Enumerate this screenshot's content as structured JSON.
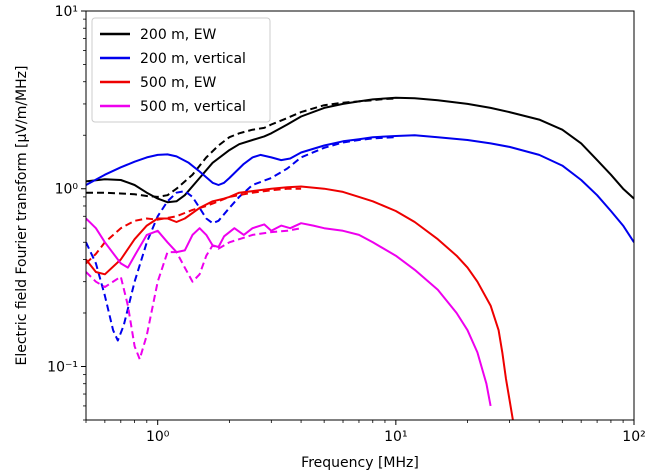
{
  "chart_data": {
    "type": "line",
    "xlabel": "Frequency [MHz]",
    "ylabel": "Electric field Fourier transform [μV/m/MHz]",
    "xscale": "log",
    "yscale": "log",
    "xlim": [
      0.5,
      100
    ],
    "ylim": [
      0.05,
      10
    ],
    "x_ticks": [
      {
        "value": 1,
        "label": "10⁰"
      },
      {
        "value": 10,
        "label": "10¹"
      },
      {
        "value": 100,
        "label": "10²"
      }
    ],
    "y_ticks": [
      {
        "value": 0.1,
        "label": "10⁻¹"
      },
      {
        "value": 1,
        "label": "10⁰"
      },
      {
        "value": 10,
        "label": "10¹"
      }
    ],
    "grid": false,
    "legend": {
      "placement": "upper-left",
      "entries": [
        {
          "name": "200 m, EW",
          "color": "#000000"
        },
        {
          "name": "200 m, vertical",
          "color": "#0000ee"
        },
        {
          "name": "500 m, EW",
          "color": "#ee0000"
        },
        {
          "name": "500 m, vertical",
          "color": "#ee00ee"
        }
      ]
    },
    "series": [
      {
        "name": "200 m, EW",
        "style": "solid",
        "color": "#000000",
        "points": [
          [
            0.5,
            1.1
          ],
          [
            0.6,
            1.13
          ],
          [
            0.7,
            1.12
          ],
          [
            0.8,
            1.05
          ],
          [
            0.9,
            0.95
          ],
          [
            1.0,
            0.88
          ],
          [
            1.1,
            0.84
          ],
          [
            1.2,
            0.85
          ],
          [
            1.3,
            0.92
          ],
          [
            1.5,
            1.15
          ],
          [
            1.7,
            1.4
          ],
          [
            2.0,
            1.65
          ],
          [
            2.2,
            1.78
          ],
          [
            2.5,
            1.88
          ],
          [
            2.8,
            1.97
          ],
          [
            3.0,
            2.05
          ],
          [
            3.5,
            2.3
          ],
          [
            4.0,
            2.55
          ],
          [
            5.0,
            2.85
          ],
          [
            6.0,
            3.0
          ],
          [
            7.0,
            3.1
          ],
          [
            8.0,
            3.18
          ],
          [
            9.0,
            3.22
          ],
          [
            10.0,
            3.25
          ],
          [
            12.0,
            3.23
          ],
          [
            15.0,
            3.15
          ],
          [
            20.0,
            3.0
          ],
          [
            25.0,
            2.85
          ],
          [
            30.0,
            2.7
          ],
          [
            40.0,
            2.45
          ],
          [
            50.0,
            2.15
          ],
          [
            60.0,
            1.8
          ],
          [
            70.0,
            1.45
          ],
          [
            80.0,
            1.2
          ],
          [
            90.0,
            1.0
          ],
          [
            100.0,
            0.88
          ]
        ]
      },
      {
        "name": "200 m, EW (dashed)",
        "style": "dashed",
        "color": "#000000",
        "points": [
          [
            0.5,
            0.95
          ],
          [
            0.6,
            0.95
          ],
          [
            0.7,
            0.94
          ],
          [
            0.8,
            0.93
          ],
          [
            0.9,
            0.91
          ],
          [
            1.0,
            0.9
          ],
          [
            1.1,
            0.92
          ],
          [
            1.2,
            1.0
          ],
          [
            1.4,
            1.2
          ],
          [
            1.6,
            1.5
          ],
          [
            1.8,
            1.75
          ],
          [
            2.0,
            1.95
          ],
          [
            2.2,
            2.05
          ],
          [
            2.5,
            2.15
          ],
          [
            2.8,
            2.2
          ],
          [
            3.0,
            2.3
          ],
          [
            3.5,
            2.5
          ],
          [
            4.0,
            2.7
          ],
          [
            5.0,
            2.95
          ],
          [
            6.0,
            3.05
          ],
          [
            7.0,
            3.1
          ],
          [
            8.0,
            3.15
          ],
          [
            9.0,
            3.2
          ],
          [
            10.0,
            3.22
          ]
        ]
      },
      {
        "name": "200 m, vertical",
        "style": "solid",
        "color": "#0000ee",
        "points": [
          [
            0.5,
            1.05
          ],
          [
            0.6,
            1.2
          ],
          [
            0.7,
            1.32
          ],
          [
            0.8,
            1.42
          ],
          [
            0.9,
            1.5
          ],
          [
            1.0,
            1.55
          ],
          [
            1.1,
            1.56
          ],
          [
            1.2,
            1.52
          ],
          [
            1.35,
            1.4
          ],
          [
            1.5,
            1.25
          ],
          [
            1.7,
            1.08
          ],
          [
            1.8,
            1.05
          ],
          [
            1.9,
            1.08
          ],
          [
            2.0,
            1.15
          ],
          [
            2.3,
            1.38
          ],
          [
            2.5,
            1.5
          ],
          [
            2.7,
            1.55
          ],
          [
            3.0,
            1.5
          ],
          [
            3.3,
            1.45
          ],
          [
            3.6,
            1.48
          ],
          [
            4.0,
            1.6
          ],
          [
            5.0,
            1.75
          ],
          [
            6.0,
            1.85
          ],
          [
            7.0,
            1.9
          ],
          [
            8.0,
            1.95
          ],
          [
            10.0,
            1.98
          ],
          [
            12.0,
            2.0
          ],
          [
            15.0,
            1.95
          ],
          [
            20.0,
            1.88
          ],
          [
            25.0,
            1.8
          ],
          [
            30.0,
            1.72
          ],
          [
            40.0,
            1.55
          ],
          [
            50.0,
            1.35
          ],
          [
            60.0,
            1.12
          ],
          [
            70.0,
            0.92
          ],
          [
            80.0,
            0.75
          ],
          [
            90.0,
            0.62
          ],
          [
            100.0,
            0.5
          ]
        ]
      },
      {
        "name": "200 m, vertical (dashed)",
        "style": "dashed",
        "color": "#0000ee",
        "points": [
          [
            0.5,
            0.5
          ],
          [
            0.55,
            0.38
          ],
          [
            0.6,
            0.25
          ],
          [
            0.65,
            0.16
          ],
          [
            0.68,
            0.14
          ],
          [
            0.72,
            0.17
          ],
          [
            0.8,
            0.3
          ],
          [
            0.9,
            0.5
          ],
          [
            1.0,
            0.7
          ],
          [
            1.1,
            0.85
          ],
          [
            1.2,
            0.95
          ],
          [
            1.3,
            0.97
          ],
          [
            1.4,
            0.9
          ],
          [
            1.5,
            0.78
          ],
          [
            1.6,
            0.68
          ],
          [
            1.7,
            0.64
          ],
          [
            1.8,
            0.66
          ],
          [
            2.0,
            0.78
          ],
          [
            2.2,
            0.9
          ],
          [
            2.5,
            1.05
          ],
          [
            3.0,
            1.15
          ],
          [
            3.5,
            1.3
          ],
          [
            4.0,
            1.5
          ],
          [
            5.0,
            1.7
          ],
          [
            6.0,
            1.82
          ],
          [
            7.0,
            1.88
          ],
          [
            8.0,
            1.92
          ],
          [
            10.0,
            1.95
          ]
        ]
      },
      {
        "name": "500 m, EW",
        "style": "solid",
        "color": "#ee0000",
        "points": [
          [
            0.5,
            0.4
          ],
          [
            0.55,
            0.34
          ],
          [
            0.6,
            0.33
          ],
          [
            0.7,
            0.4
          ],
          [
            0.8,
            0.52
          ],
          [
            0.9,
            0.62
          ],
          [
            1.0,
            0.68
          ],
          [
            1.1,
            0.68
          ],
          [
            1.2,
            0.65
          ],
          [
            1.3,
            0.68
          ],
          [
            1.5,
            0.78
          ],
          [
            1.7,
            0.85
          ],
          [
            1.9,
            0.88
          ],
          [
            2.0,
            0.9
          ],
          [
            2.2,
            0.95
          ],
          [
            2.5,
            0.97
          ],
          [
            3.0,
            1.0
          ],
          [
            3.5,
            1.02
          ],
          [
            4.0,
            1.03
          ],
          [
            5.0,
            1.0
          ],
          [
            6.0,
            0.96
          ],
          [
            7.0,
            0.9
          ],
          [
            8.0,
            0.85
          ],
          [
            10.0,
            0.75
          ],
          [
            12.0,
            0.65
          ],
          [
            15.0,
            0.52
          ],
          [
            18.0,
            0.42
          ],
          [
            20.0,
            0.36
          ],
          [
            22.0,
            0.3
          ],
          [
            25.0,
            0.22
          ],
          [
            27.0,
            0.16
          ],
          [
            28.0,
            0.12
          ],
          [
            29.0,
            0.085
          ],
          [
            30.0,
            0.065
          ],
          [
            31.0,
            0.05
          ]
        ]
      },
      {
        "name": "500 m, EW (dashed)",
        "style": "dashed",
        "color": "#ee0000",
        "points": [
          [
            0.5,
            0.38
          ],
          [
            0.55,
            0.43
          ],
          [
            0.6,
            0.5
          ],
          [
            0.7,
            0.6
          ],
          [
            0.8,
            0.66
          ],
          [
            0.9,
            0.68
          ],
          [
            1.0,
            0.67
          ],
          [
            1.2,
            0.7
          ],
          [
            1.4,
            0.76
          ],
          [
            1.6,
            0.8
          ],
          [
            1.8,
            0.85
          ],
          [
            2.0,
            0.9
          ],
          [
            2.5,
            0.95
          ],
          [
            3.0,
            0.98
          ],
          [
            3.5,
            1.0
          ],
          [
            4.0,
            1.0
          ]
        ]
      },
      {
        "name": "500 m, vertical",
        "style": "solid",
        "color": "#ee00ee",
        "points": [
          [
            0.5,
            0.68
          ],
          [
            0.55,
            0.6
          ],
          [
            0.6,
            0.5
          ],
          [
            0.7,
            0.38
          ],
          [
            0.75,
            0.36
          ],
          [
            0.8,
            0.42
          ],
          [
            0.9,
            0.55
          ],
          [
            1.0,
            0.58
          ],
          [
            1.1,
            0.5
          ],
          [
            1.2,
            0.44
          ],
          [
            1.3,
            0.45
          ],
          [
            1.4,
            0.55
          ],
          [
            1.5,
            0.6
          ],
          [
            1.6,
            0.55
          ],
          [
            1.7,
            0.48
          ],
          [
            1.8,
            0.47
          ],
          [
            1.9,
            0.54
          ],
          [
            2.1,
            0.6
          ],
          [
            2.3,
            0.55
          ],
          [
            2.5,
            0.6
          ],
          [
            2.8,
            0.63
          ],
          [
            3.0,
            0.58
          ],
          [
            3.3,
            0.62
          ],
          [
            3.6,
            0.6
          ],
          [
            4.0,
            0.64
          ],
          [
            4.5,
            0.62
          ],
          [
            5.0,
            0.6
          ],
          [
            6.0,
            0.58
          ],
          [
            7.0,
            0.55
          ],
          [
            8.0,
            0.5
          ],
          [
            10.0,
            0.42
          ],
          [
            12.0,
            0.35
          ],
          [
            15.0,
            0.27
          ],
          [
            18.0,
            0.2
          ],
          [
            20.0,
            0.16
          ],
          [
            22.0,
            0.12
          ],
          [
            24.0,
            0.08
          ],
          [
            25.0,
            0.06
          ]
        ]
      },
      {
        "name": "500 m, vertical (dashed)",
        "style": "dashed",
        "color": "#ee00ee",
        "points": [
          [
            0.5,
            0.34
          ],
          [
            0.55,
            0.3
          ],
          [
            0.6,
            0.28
          ],
          [
            0.7,
            0.32
          ],
          [
            0.75,
            0.22
          ],
          [
            0.8,
            0.13
          ],
          [
            0.84,
            0.11
          ],
          [
            0.9,
            0.15
          ],
          [
            1.0,
            0.3
          ],
          [
            1.1,
            0.44
          ],
          [
            1.2,
            0.44
          ],
          [
            1.3,
            0.36
          ],
          [
            1.4,
            0.3
          ],
          [
            1.5,
            0.33
          ],
          [
            1.6,
            0.42
          ],
          [
            1.7,
            0.48
          ],
          [
            1.8,
            0.46
          ],
          [
            2.0,
            0.5
          ],
          [
            2.2,
            0.52
          ],
          [
            2.5,
            0.55
          ],
          [
            3.0,
            0.57
          ],
          [
            3.5,
            0.58
          ],
          [
            4.0,
            0.6
          ]
        ]
      }
    ]
  }
}
